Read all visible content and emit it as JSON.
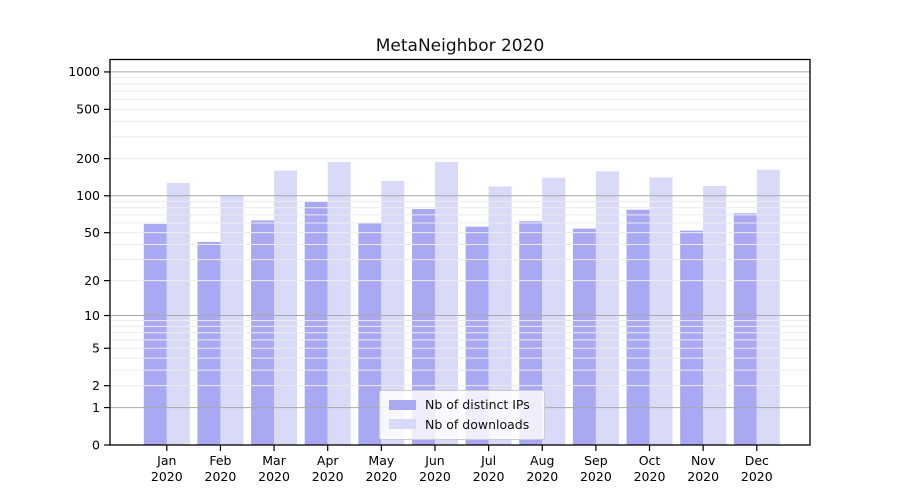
{
  "chart_data": {
    "type": "bar",
    "title": "MetaNeighbor 2020",
    "categories": [
      "Jan",
      "Feb",
      "Mar",
      "Apr",
      "May",
      "Jun",
      "Jul",
      "Aug",
      "Sep",
      "Oct",
      "Nov",
      "Dec"
    ],
    "year": "2020",
    "series": [
      {
        "name": "Nb of distinct IPs",
        "color": "#a9a9f3",
        "values": [
          59,
          42,
          63,
          89,
          60,
          78,
          56,
          62,
          54,
          77,
          52,
          72
        ]
      },
      {
        "name": "Nb of downloads",
        "color": "#d9d9f8",
        "values": [
          127,
          101,
          160,
          188,
          132,
          188,
          119,
          140,
          158,
          141,
          120,
          163
        ]
      }
    ],
    "y_axis": {
      "scale": "log1p",
      "ticks": [
        0,
        1,
        2,
        5,
        10,
        20,
        50,
        100,
        200,
        500,
        1000
      ],
      "minor_gridlines": [
        3,
        4,
        6,
        7,
        8,
        9,
        30,
        40,
        60,
        70,
        80,
        90,
        300,
        400,
        600,
        700,
        800,
        900
      ],
      "ylim": [
        0,
        1260
      ]
    },
    "legend_position": "lower-center-inside",
    "grid": true
  }
}
